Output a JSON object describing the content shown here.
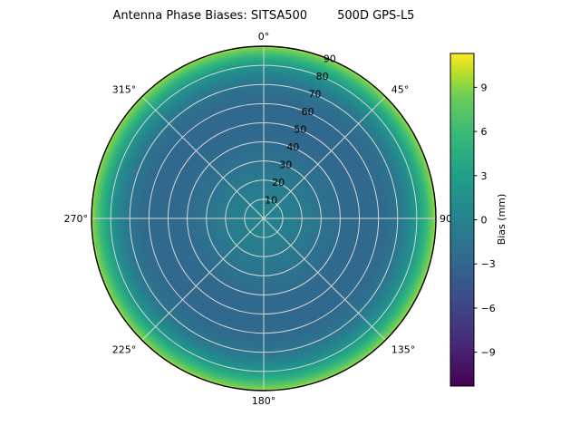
{
  "chart_data": {
    "type": "heatmap",
    "projection": "polar",
    "title": "Antenna Phase Biases: SITSA500        500D GPS-L5",
    "theta_zero": "top",
    "theta_direction": "clockwise",
    "theta_ticks": [
      {
        "angle_deg": 0,
        "label": "0°"
      },
      {
        "angle_deg": 45,
        "label": "45°"
      },
      {
        "angle_deg": 90,
        "label": "90°"
      },
      {
        "angle_deg": 135,
        "label": "135°"
      },
      {
        "angle_deg": 180,
        "label": "180°"
      },
      {
        "angle_deg": 225,
        "label": "225°"
      },
      {
        "angle_deg": 270,
        "label": "270°"
      },
      {
        "angle_deg": 315,
        "label": "315°"
      }
    ],
    "r_max": 90,
    "rlabel_angle_deg": 22.5,
    "r_ticks": [
      {
        "value": 10,
        "label": "10"
      },
      {
        "value": 20,
        "label": "20"
      },
      {
        "value": 30,
        "label": "30"
      },
      {
        "value": 40,
        "label": "40"
      },
      {
        "value": 50,
        "label": "50"
      },
      {
        "value": 60,
        "label": "60"
      },
      {
        "value": 70,
        "label": "70"
      },
      {
        "value": 80,
        "label": "80"
      },
      {
        "value": 90,
        "label": "90"
      }
    ],
    "grid": {
      "visible": true,
      "color": "#d6d6d6"
    },
    "radial_profile": {
      "comment": "azimuthally averaged phase bias (mm) vs zenith angle (deg), read from colors",
      "zenith_deg": [
        0,
        10,
        20,
        30,
        40,
        50,
        60,
        65,
        70,
        75,
        80,
        84,
        87,
        90
      ],
      "bias_mm": [
        0.2,
        -0.2,
        -0.8,
        -1.6,
        -2.4,
        -2.8,
        -2.7,
        -2.2,
        -1.4,
        0.0,
        2.2,
        4.8,
        7.2,
        9.6
      ]
    },
    "colormap": {
      "name": "viridis",
      "stops": [
        [
          0.0,
          "#440154"
        ],
        [
          0.125,
          "#482878"
        ],
        [
          0.25,
          "#3e4989"
        ],
        [
          0.375,
          "#31688e"
        ],
        [
          0.5,
          "#26828e"
        ],
        [
          0.625,
          "#1f9e89"
        ],
        [
          0.75,
          "#35b779"
        ],
        [
          0.875,
          "#6ece58"
        ],
        [
          0.9375,
          "#b5de2b"
        ],
        [
          1.0,
          "#fde725"
        ]
      ]
    },
    "colorbar": {
      "label": "Bias (mm)",
      "range": [
        -11.3,
        11.3
      ],
      "ticks": [
        {
          "value": 9,
          "label": "9"
        },
        {
          "value": 6,
          "label": "6"
        },
        {
          "value": 3,
          "label": "3"
        },
        {
          "value": 0,
          "label": "0"
        },
        {
          "value": -3,
          "label": "−3"
        },
        {
          "value": -6,
          "label": "−6"
        },
        {
          "value": -9,
          "label": "−9"
        }
      ]
    }
  }
}
